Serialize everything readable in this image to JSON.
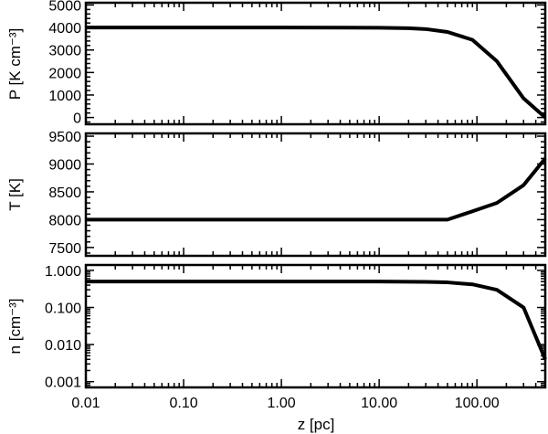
{
  "chart_data": [
    {
      "type": "line",
      "xscale": "log",
      "yscale": "linear",
      "xlim": [
        0.01,
        500
      ],
      "ylim": [
        -300,
        5100
      ],
      "ylabel": "P [K cm⁻³]",
      "yticks": [
        0,
        1000,
        2000,
        3000,
        4000,
        5000
      ],
      "yticklabels": [
        "0",
        "1000",
        "2000",
        "3000",
        "4000",
        "5000"
      ],
      "series": [
        {
          "x": [
            0.01,
            1,
            10,
            20,
            30,
            50,
            90,
            160,
            300,
            500
          ],
          "y": [
            4000,
            4000,
            3990,
            3970,
            3930,
            3800,
            3450,
            2500,
            850,
            0
          ]
        }
      ]
    },
    {
      "type": "line",
      "xscale": "log",
      "yscale": "linear",
      "xlim": [
        0.01,
        500
      ],
      "ylim": [
        7350,
        9550
      ],
      "ylabel": "T [K]",
      "yticks": [
        7500,
        8000,
        8500,
        9000,
        9500
      ],
      "yticklabels": [
        "7500",
        "8000",
        "8500",
        "9000",
        "9500"
      ],
      "series": [
        {
          "x": [
            0.01,
            10,
            50,
            90,
            160,
            300,
            500
          ],
          "y": [
            8000,
            8000,
            8000,
            8150,
            8300,
            8620,
            9100
          ]
        }
      ]
    },
    {
      "type": "line",
      "xscale": "log",
      "yscale": "log",
      "xlim": [
        0.01,
        500
      ],
      "ylim": [
        0.0007,
        1.4
      ],
      "ylabel": "n [cm⁻³]",
      "xlabel": "z [pc]",
      "yticks": [
        0.001,
        0.01,
        0.1,
        1
      ],
      "yticklabels": [
        "0.001",
        "0.010",
        "0.100",
        "1.000"
      ],
      "xticks": [
        0.01,
        0.1,
        1,
        10,
        100
      ],
      "xticklabels": [
        "0.01",
        "0.10",
        "1.00",
        "10.00",
        "100.00"
      ],
      "series": [
        {
          "x": [
            0.01,
            1,
            10,
            30,
            50,
            90,
            160,
            300,
            500
          ],
          "y": [
            0.5,
            0.5,
            0.5,
            0.49,
            0.475,
            0.42,
            0.3,
            0.1,
            0.004
          ]
        }
      ]
    }
  ]
}
